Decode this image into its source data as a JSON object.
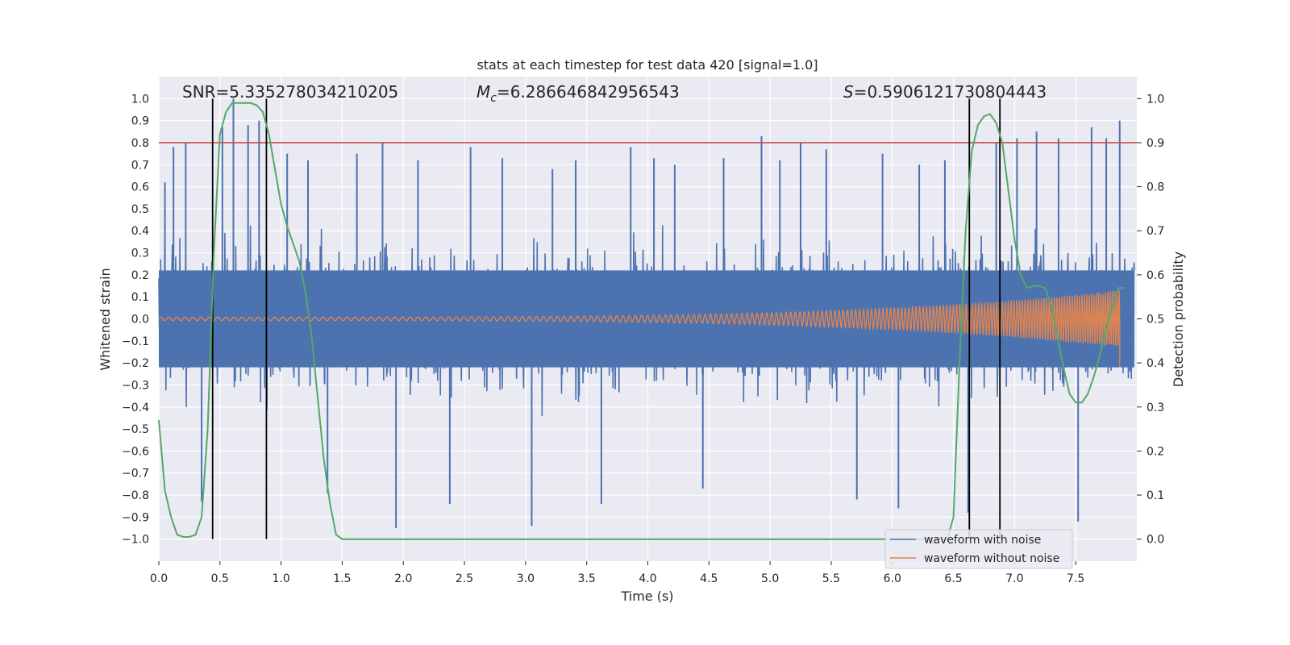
{
  "chart_data": {
    "type": "line",
    "title": "stats at each timestep for test data 420 [signal=1.0]",
    "xlabel": "Time (s)",
    "ylabel_left": "Whitened strain",
    "ylabel_right": "Detection probability",
    "xlim": [
      0.0,
      8.0
    ],
    "ylim_left": [
      -1.1,
      1.1
    ],
    "ylim_right": [
      -0.05,
      1.05
    ],
    "x_ticks": [
      "0.0",
      "0.5",
      "1.0",
      "1.5",
      "2.0",
      "2.5",
      "3.0",
      "3.5",
      "4.0",
      "4.5",
      "5.0",
      "5.5",
      "6.0",
      "6.5",
      "7.0",
      "7.5"
    ],
    "y_left_ticks": [
      "1.0",
      "0.9",
      "0.8",
      "0.7",
      "0.6",
      "0.5",
      "0.4",
      "0.3",
      "0.2",
      "0.1",
      "0.0",
      "-0.1",
      "-0.2",
      "-0.3",
      "-0.4",
      "-0.5",
      "-0.6",
      "-0.7",
      "-0.8",
      "-0.9",
      "-1.0"
    ],
    "y_right_ticks": [
      "1.0",
      "0.9",
      "0.8",
      "0.7",
      "0.6",
      "0.5",
      "0.4",
      "0.3",
      "0.2",
      "0.1",
      "0.0"
    ],
    "grid": true,
    "annotations": {
      "snr": "SNR=5.335278034210205",
      "mc_symbol": "M",
      "mc_sub": "c",
      "mc_value": "=6.286646842956543",
      "s_symbol": "S",
      "s_value": "=0.5906121730804443"
    },
    "threshold": {
      "value": 0.8,
      "color": "#c44e52"
    },
    "vlines": [
      0.44,
      0.88,
      6.63,
      6.88
    ],
    "series": [
      {
        "name": "waveform with noise",
        "color": "#4c72b0",
        "axis": "left",
        "peak_times": [
          0.05,
          0.12,
          0.22,
          0.35,
          0.52,
          0.61,
          0.73,
          0.82,
          1.05,
          1.22,
          1.38,
          1.62,
          1.83,
          1.94,
          2.12,
          2.38,
          2.55,
          2.81,
          3.05,
          3.22,
          3.41,
          3.62,
          3.86,
          4.05,
          4.22,
          4.45,
          4.62,
          4.93,
          5.08,
          5.25,
          5.46,
          5.71,
          5.92,
          6.05,
          6.22,
          6.43,
          6.62,
          6.85,
          7.02,
          7.18,
          7.36,
          7.52,
          7.63,
          7.75,
          7.86
        ],
        "peak_values": [
          0.62,
          0.78,
          0.8,
          -0.83,
          0.87,
          1.0,
          0.88,
          0.9,
          0.75,
          0.72,
          -0.79,
          0.75,
          0.8,
          -0.95,
          0.72,
          -0.84,
          0.78,
          0.73,
          -0.94,
          0.68,
          0.72,
          -0.84,
          0.78,
          0.73,
          0.7,
          -0.77,
          0.73,
          0.83,
          0.72,
          0.8,
          0.77,
          -0.82,
          0.75,
          -0.86,
          0.7,
          0.72,
          -0.88,
          0.8,
          0.82,
          0.85,
          0.82,
          -0.92,
          0.87,
          0.82,
          0.9
        ]
      },
      {
        "name": "waveform without noise",
        "color": "#dd8452",
        "axis": "left",
        "amp_start": 0.008,
        "amp_end": 0.13,
        "end_dip": -0.22,
        "freq_start": 15,
        "freq_end": 55,
        "t_end": 7.86
      },
      {
        "name": "detection probability",
        "color": "#55a868",
        "axis": "right",
        "x": [
          0.0,
          0.05,
          0.1,
          0.15,
          0.2,
          0.25,
          0.3,
          0.35,
          0.4,
          0.45,
          0.5,
          0.55,
          0.6,
          0.65,
          0.7,
          0.75,
          0.8,
          0.85,
          0.9,
          0.95,
          1.0,
          1.05,
          1.1,
          1.15,
          1.2,
          1.25,
          1.3,
          1.35,
          1.4,
          1.45,
          1.5,
          1.6,
          2.0,
          3.0,
          4.0,
          5.0,
          6.0,
          6.4,
          6.45,
          6.5,
          6.55,
          6.6,
          6.65,
          6.7,
          6.75,
          6.8,
          6.85,
          6.9,
          6.95,
          7.0,
          7.05,
          7.1,
          7.15,
          7.2,
          7.25,
          7.3,
          7.35,
          7.4,
          7.45,
          7.5,
          7.55,
          7.6,
          7.65,
          7.7,
          7.75,
          7.8,
          7.85,
          7.9
        ],
        "y": [
          0.27,
          0.11,
          0.05,
          0.01,
          0.005,
          0.005,
          0.01,
          0.05,
          0.25,
          0.65,
          0.92,
          0.97,
          0.99,
          0.99,
          0.99,
          0.99,
          0.985,
          0.97,
          0.92,
          0.84,
          0.76,
          0.71,
          0.67,
          0.63,
          0.56,
          0.46,
          0.32,
          0.18,
          0.08,
          0.01,
          0.0,
          0.0,
          0.0,
          0.0,
          0.0,
          0.0,
          0.0,
          0.0,
          0.0,
          0.05,
          0.4,
          0.7,
          0.88,
          0.94,
          0.96,
          0.965,
          0.945,
          0.9,
          0.79,
          0.68,
          0.6,
          0.57,
          0.575,
          0.575,
          0.57,
          0.53,
          0.46,
          0.39,
          0.33,
          0.31,
          0.31,
          0.33,
          0.37,
          0.42,
          0.48,
          0.53,
          0.57,
          0.57
        ]
      }
    ],
    "legend": {
      "placement": "bottom-right"
    }
  }
}
